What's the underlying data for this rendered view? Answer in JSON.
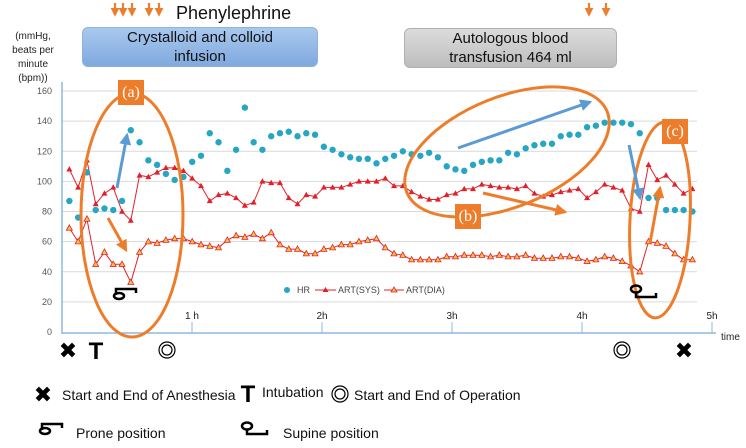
{
  "header": {
    "y_axis_unit": "(mmHg, beats per minute (bpm))",
    "phenylephrine_label": "Phenylephrine",
    "infusion_label": "Crystalloid and colloid infusion",
    "transfusion_label": "Autologous blood transfusion 464 ml"
  },
  "annotations": {
    "a": "(a)",
    "b": "(b)",
    "c": "(c)"
  },
  "legend": {
    "anesthesia": "Start and End of Anesthesia",
    "intubation": "Intubation",
    "operation": "Start and End of Operation",
    "prone": "Prone position",
    "supine": "Supine position"
  },
  "colors": {
    "hr": "#26a6c2",
    "art": "#e3202a",
    "dia_fill": "#f6c343",
    "accent": "#ee7d2b",
    "blue_arrow": "#5b9bd5"
  },
  "chart_data": {
    "type": "line",
    "title": "",
    "xlabel": "time",
    "ylabel": "(mmHg, beats per minute (bpm))",
    "ylim": [
      0,
      160
    ],
    "xlim_hours": [
      0,
      5
    ],
    "y_ticks": [
      "0",
      "20",
      "40",
      "60",
      "80",
      "100",
      "120",
      "140",
      "160"
    ],
    "x_ticks": [
      "1 h",
      "2h",
      "3h",
      "4h",
      "5h"
    ],
    "x_tick_values_hours": [
      1,
      2,
      3,
      4,
      5
    ],
    "time_start_min": 3.4,
    "interval_min": 4.05,
    "legend": [
      "HR",
      "ART(SYS)",
      "ART(DIA)"
    ],
    "legend_position": "bottom-center",
    "series": [
      {
        "name": "HR",
        "values": [
          87,
          76,
          106,
          81,
          82,
          81,
          87,
          134,
          126,
          114,
          111,
          105,
          101,
          103,
          113,
          117,
          132,
          126,
          107,
          121,
          149,
          126,
          121,
          130,
          132,
          133,
          130,
          132,
          131,
          123,
          121,
          118,
          116,
          115,
          115,
          112,
          115,
          117,
          120,
          118,
          117,
          119,
          116,
          110,
          108,
          107,
          111,
          113,
          114,
          114,
          119,
          118,
          122,
          124,
          125,
          125,
          130,
          131,
          131,
          136,
          137,
          139,
          139,
          139,
          138,
          132,
          89,
          89,
          81,
          81,
          81,
          80
        ]
      },
      {
        "name": "ART(SYS)",
        "values": [
          108,
          96,
          114,
          85,
          92,
          96,
          80,
          74,
          104,
          103,
          106,
          109,
          109,
          107,
          102,
          97,
          87,
          91,
          92,
          89,
          84,
          86,
          100,
          99,
          99,
          89,
          85,
          91,
          90,
          96,
          96,
          96,
          98,
          100,
          100,
          100,
          102,
          97,
          97,
          93,
          90,
          88,
          88,
          91,
          92,
          95,
          95,
          98,
          97,
          96,
          96,
          95,
          97,
          92,
          90,
          91,
          93,
          94,
          95,
          89,
          93,
          98,
          96,
          94,
          82,
          80,
          111,
          101,
          104,
          98,
          92,
          95
        ]
      },
      {
        "name": "ART(DIA)",
        "values": [
          69,
          60,
          75,
          45,
          53,
          45,
          45,
          33,
          53,
          60,
          59,
          61,
          62,
          62,
          60,
          58,
          57,
          56,
          61,
          64,
          63,
          65,
          62,
          66,
          58,
          55,
          55,
          52,
          52,
          55,
          56,
          58,
          58,
          60,
          61,
          62,
          56,
          52,
          51,
          48,
          48,
          48,
          48,
          50,
          50,
          51,
          51,
          51,
          50,
          51,
          50,
          50,
          51,
          49,
          49,
          49,
          50,
          50,
          49,
          47,
          48,
          50,
          49,
          47,
          44,
          40,
          60,
          59,
          57,
          52,
          48,
          48
        ]
      }
    ],
    "events": [
      {
        "symbol": "anesthesia-mark",
        "time_min": 3
      },
      {
        "symbol": "intubation-mark",
        "time_min": 15
      },
      {
        "symbol": "operation-mark",
        "time_min": 48
      },
      {
        "symbol": "operation-mark",
        "time_min": 258
      },
      {
        "symbol": "anesthesia-mark",
        "time_min": 286
      }
    ],
    "phenylephrine_doses_min": [
      24,
      28,
      32,
      40,
      45,
      243,
      251
    ]
  }
}
